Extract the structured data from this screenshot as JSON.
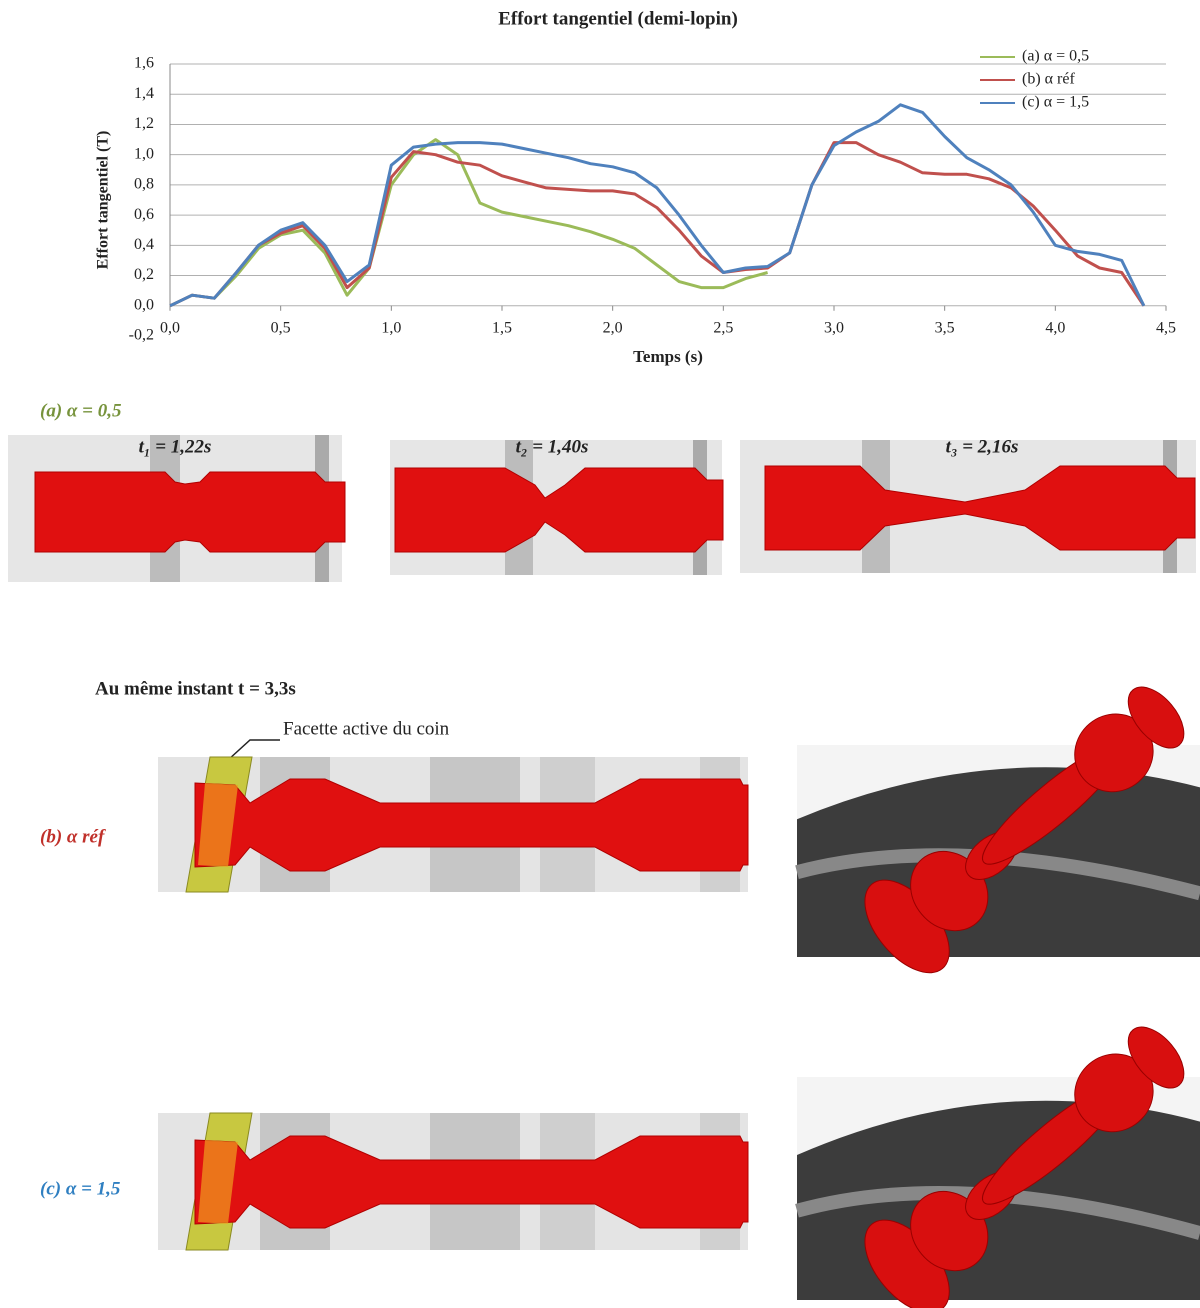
{
  "chart_data": {
    "type": "line",
    "title": "Effort tangentiel (demi-lopin)",
    "x_label": "Temps (s)",
    "y_label": "Effort tangentiel (T)",
    "x": [
      0,
      0.1,
      0.2,
      0.3,
      0.4,
      0.5,
      0.6,
      0.7,
      0.8,
      0.9,
      1.0,
      1.1,
      1.2,
      1.3,
      1.4,
      1.5,
      1.6,
      1.7,
      1.8,
      1.9,
      2.0,
      2.1,
      2.2,
      2.3,
      2.4,
      2.5,
      2.6,
      2.7,
      2.8,
      2.9,
      3.0,
      3.1,
      3.2,
      3.3,
      3.4,
      3.5,
      3.6,
      3.7,
      3.8,
      3.9,
      4.0,
      4.1,
      4.2,
      4.3,
      4.4
    ],
    "series": [
      {
        "name": "(a) α = 0,5",
        "color": "#9bbb59",
        "values": [
          0,
          0.07,
          0.05,
          0.2,
          0.38,
          0.47,
          0.5,
          0.35,
          0.07,
          0.25,
          0.8,
          1.0,
          1.1,
          1.0,
          0.68,
          0.62,
          0.59,
          0.56,
          0.53,
          0.49,
          0.44,
          0.38,
          0.27,
          0.16,
          0.12,
          0.12,
          0.18,
          0.22,
          null,
          null,
          null,
          null,
          null,
          null,
          null,
          null,
          null,
          null,
          null,
          null,
          null,
          null,
          null,
          null,
          null
        ]
      },
      {
        "name": "(b) α réf",
        "color": "#c0504d",
        "values": [
          0,
          0.07,
          0.05,
          0.22,
          0.4,
          0.48,
          0.53,
          0.38,
          0.12,
          0.25,
          0.85,
          1.02,
          1.0,
          0.95,
          0.93,
          0.86,
          0.82,
          0.78,
          0.77,
          0.76,
          0.76,
          0.74,
          0.65,
          0.5,
          0.33,
          0.22,
          0.24,
          0.25,
          0.35,
          0.8,
          1.08,
          1.08,
          1.0,
          0.95,
          0.88,
          0.87,
          0.87,
          0.84,
          0.78,
          0.66,
          0.5,
          0.33,
          0.25,
          0.22,
          0
        ]
      },
      {
        "name": "(c) α = 1,5",
        "color": "#4f81bd",
        "values": [
          0,
          0.07,
          0.05,
          0.22,
          0.4,
          0.5,
          0.55,
          0.4,
          0.16,
          0.27,
          0.93,
          1.05,
          1.07,
          1.08,
          1.08,
          1.07,
          1.04,
          1.01,
          0.98,
          0.94,
          0.92,
          0.88,
          0.78,
          0.6,
          0.4,
          0.22,
          0.25,
          0.26,
          0.35,
          0.8,
          1.06,
          1.15,
          1.22,
          1.33,
          1.28,
          1.12,
          0.98,
          0.9,
          0.8,
          0.62,
          0.4,
          0.36,
          0.34,
          0.3,
          0
        ]
      }
    ],
    "xlim": [
      0,
      4.5
    ],
    "ylim": [
      -0.2,
      1.6
    ],
    "xticks": [
      {
        "value": 0,
        "label": "0,0"
      },
      {
        "value": 0.5,
        "label": "0,5"
      },
      {
        "value": 1,
        "label": "1,0"
      },
      {
        "value": 1.5,
        "label": "1,5"
      },
      {
        "value": 2,
        "label": "2,0"
      },
      {
        "value": 2.5,
        "label": "2,5"
      },
      {
        "value": 3,
        "label": "3,0"
      },
      {
        "value": 3.5,
        "label": "3,5"
      },
      {
        "value": 4,
        "label": "4,0"
      },
      {
        "value": 4.5,
        "label": "4,5"
      }
    ],
    "yticks": [
      {
        "value": -0.2,
        "label": "-0,2"
      },
      {
        "value": 0,
        "label": "0,0"
      },
      {
        "value": 0.2,
        "label": "0,2"
      },
      {
        "value": 0.4,
        "label": "0,4"
      },
      {
        "value": 0.6,
        "label": "0,6"
      },
      {
        "value": 0.8,
        "label": "0,8"
      },
      {
        "value": 1,
        "label": "1,0"
      },
      {
        "value": 1.2,
        "label": "1,2"
      },
      {
        "value": 1.4,
        "label": "1,4"
      },
      {
        "value": 1.6,
        "label": "1,6"
      }
    ],
    "grid": true,
    "legend": "top-right"
  },
  "figure": {
    "panel_a": "(a) α = 0,5",
    "times": [
      "t₁ = 1,22s",
      "t₂ = 1,40s",
      "t₃ = 2,16s"
    ],
    "same_instant": "Au même instant t = 3,3s",
    "facet": "Facette active du coin",
    "panel_b": "(b) α réf",
    "panel_c": "(c) α = 1,5"
  }
}
